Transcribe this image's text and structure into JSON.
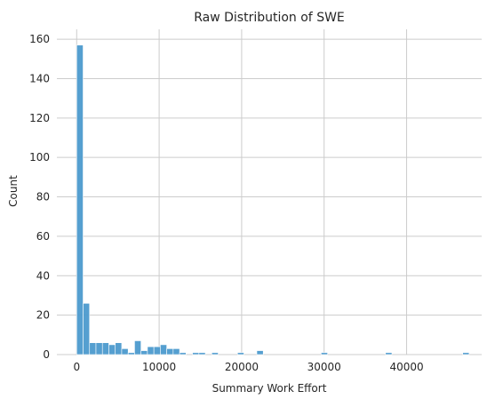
{
  "chart_data": {
    "type": "bar",
    "title": "Raw Distribution of SWE",
    "xlabel": "Summary Work Effort",
    "ylabel": "Count",
    "xlim": [
      -2400,
      49100
    ],
    "ylim": [
      0,
      165
    ],
    "xticks": [
      0,
      10000,
      20000,
      30000,
      40000
    ],
    "yticks": [
      0,
      20,
      40,
      60,
      80,
      100,
      120,
      140,
      160
    ],
    "grid": true,
    "bin_width": 780,
    "bins": [
      {
        "x0": 0,
        "count": 157
      },
      {
        "x0": 780,
        "count": 26
      },
      {
        "x0": 1560,
        "count": 6
      },
      {
        "x0": 2340,
        "count": 6
      },
      {
        "x0": 3120,
        "count": 6
      },
      {
        "x0": 3900,
        "count": 5
      },
      {
        "x0": 4680,
        "count": 6
      },
      {
        "x0": 5460,
        "count": 3
      },
      {
        "x0": 6240,
        "count": 1
      },
      {
        "x0": 7020,
        "count": 7
      },
      {
        "x0": 7800,
        "count": 2
      },
      {
        "x0": 8580,
        "count": 4
      },
      {
        "x0": 9360,
        "count": 4
      },
      {
        "x0": 10140,
        "count": 5
      },
      {
        "x0": 10920,
        "count": 3
      },
      {
        "x0": 11700,
        "count": 3
      },
      {
        "x0": 12480,
        "count": 1
      },
      {
        "x0": 14040,
        "count": 1
      },
      {
        "x0": 14820,
        "count": 1
      },
      {
        "x0": 16380,
        "count": 1
      },
      {
        "x0": 19500,
        "count": 1
      },
      {
        "x0": 21840,
        "count": 2
      },
      {
        "x0": 29640,
        "count": 1
      },
      {
        "x0": 37440,
        "count": 1
      },
      {
        "x0": 46800,
        "count": 1
      }
    ]
  }
}
